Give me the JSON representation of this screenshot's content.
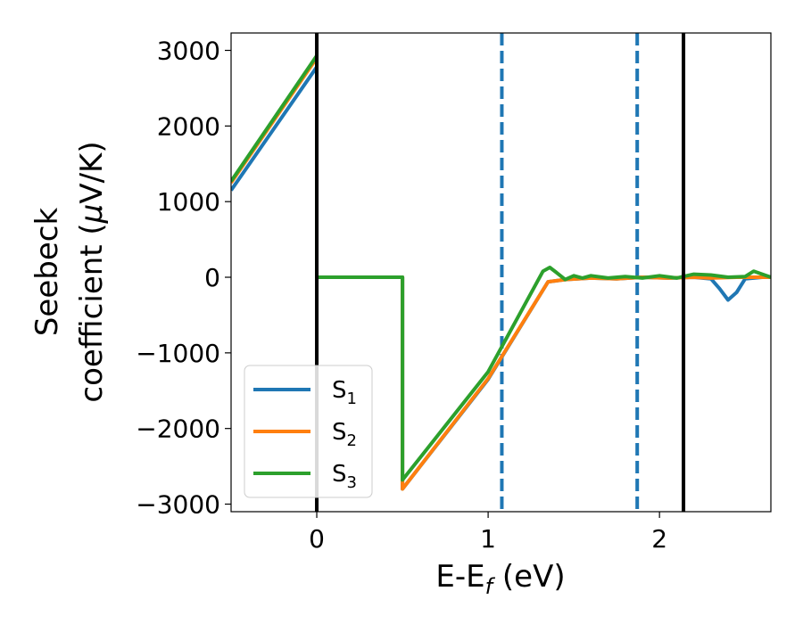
{
  "chart_data": {
    "type": "line",
    "xlabel_main": "E-E",
    "xlabel_sub": "f",
    "xlabel_tail": " (eV)",
    "ylabel_line1": "Seebeck",
    "ylabel_line2_pre": "coefficient  (",
    "ylabel_line2_mu": "μ",
    "ylabel_line2_post": "V/K)",
    "xlim": [
      -0.5,
      2.65
    ],
    "ylim": [
      -3100,
      3230
    ],
    "xticks": [
      0,
      1,
      2
    ],
    "yticks": [
      3000,
      2000,
      1000,
      0,
      -1000,
      -2000,
      -3000
    ],
    "ytick_labels": [
      "3000",
      "2000",
      "1000",
      "0",
      "−1000",
      "−2000",
      "−3000"
    ],
    "vlines_solid": [
      0.0,
      2.14
    ],
    "vlines_dashed": [
      1.08,
      1.87
    ],
    "legend_position": "lower-left",
    "series": [
      {
        "name": "S",
        "sub": "1",
        "color": "#1f77b4",
        "x": [
          -0.5,
          0.0,
          0.0,
          0.5,
          0.5,
          1.0,
          1.35,
          1.45,
          1.6,
          1.75,
          1.9,
          2.05,
          2.2,
          2.3,
          2.35,
          2.4,
          2.45,
          2.5,
          2.6,
          2.65
        ],
        "y": [
          1150,
          2780,
          0,
          0,
          -2800,
          -1350,
          -60,
          -30,
          -10,
          -20,
          0,
          -10,
          0,
          -20,
          -150,
          -300,
          -200,
          -20,
          0,
          0
        ]
      },
      {
        "name": "S",
        "sub": "2",
        "color": "#ff7f0e",
        "x": [
          -0.5,
          0.0,
          0.0,
          0.5,
          0.5,
          1.0,
          1.35,
          1.45,
          1.6,
          1.75,
          1.9,
          2.05,
          2.2,
          2.3,
          2.45,
          2.6,
          2.65
        ],
        "y": [
          1250,
          2900,
          0,
          0,
          -2800,
          -1340,
          -60,
          -30,
          -10,
          -20,
          0,
          -10,
          0,
          -10,
          0,
          0,
          0
        ]
      },
      {
        "name": "S",
        "sub": "3",
        "color": "#2ca02c",
        "x": [
          -0.5,
          0.0,
          0.0,
          0.5,
          0.5,
          1.0,
          1.32,
          1.36,
          1.4,
          1.45,
          1.5,
          1.55,
          1.6,
          1.7,
          1.8,
          1.9,
          2.0,
          2.1,
          2.2,
          2.3,
          2.4,
          2.5,
          2.55,
          2.6,
          2.65
        ],
        "y": [
          1270,
          2930,
          0,
          0,
          -2680,
          -1250,
          80,
          130,
          60,
          -30,
          20,
          -10,
          20,
          -10,
          10,
          -10,
          20,
          -10,
          40,
          30,
          0,
          10,
          80,
          40,
          0
        ]
      }
    ]
  }
}
